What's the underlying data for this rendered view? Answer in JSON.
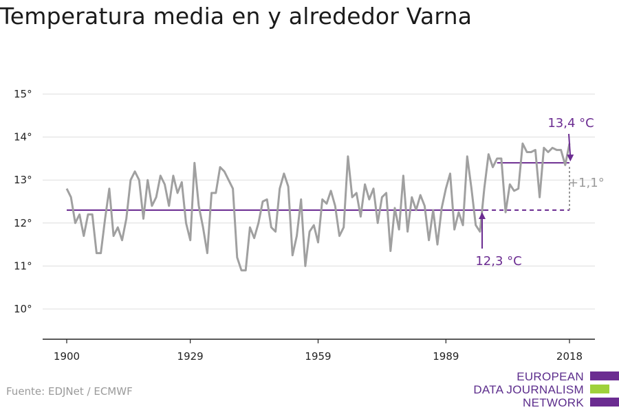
{
  "title": "Temperatura media en y alrededor Varna",
  "source": "Fuente: EDJNet / ECMWF",
  "logo": {
    "line1": "EUROPEAN",
    "line2": "DATA JOURNALISM",
    "line3": "NETWORK",
    "colors": [
      "#6b2c91",
      "#9fd13b",
      "#6b2c91"
    ]
  },
  "colors": {
    "series": "#a0a0a0",
    "accent": "#6b2c91",
    "grid": "#dddddd",
    "axis": "#222222"
  },
  "chart_data": {
    "type": "line",
    "title": "Temperatura media en y alrededor Varna",
    "xlabel": "",
    "ylabel": "",
    "xlim": [
      1900,
      2018
    ],
    "ylim": [
      9.3,
      15.6
    ],
    "grid": true,
    "x_ticks": [
      1900,
      1929,
      1959,
      1989,
      2018
    ],
    "y_ticks": [
      10,
      11,
      12,
      13,
      14,
      15
    ],
    "y_tick_labels": [
      "10°",
      "11°",
      "12°",
      "13°",
      "14°",
      "15°"
    ],
    "series": [
      {
        "x": [
          1900,
          1901,
          1902,
          1903,
          1904,
          1905,
          1906,
          1907,
          1908,
          1909,
          1910,
          1911,
          1912,
          1913,
          1914,
          1915,
          1916,
          1917,
          1918,
          1919,
          1920,
          1921,
          1922,
          1923,
          1924,
          1925,
          1926,
          1927,
          1928,
          1929,
          1930,
          1931,
          1932,
          1933,
          1934,
          1935,
          1936,
          1937,
          1938,
          1939,
          1940,
          1941,
          1942,
          1943,
          1944,
          1945,
          1946,
          1947,
          1948,
          1949,
          1950,
          1951,
          1952,
          1953,
          1954,
          1955,
          1956,
          1957,
          1958,
          1959,
          1960,
          1961,
          1962,
          1963,
          1964,
          1965,
          1966,
          1967,
          1968,
          1969,
          1970,
          1971,
          1972,
          1973,
          1974,
          1975,
          1976,
          1977,
          1978,
          1979,
          1980,
          1981,
          1982,
          1983,
          1984,
          1985,
          1986,
          1987,
          1988,
          1989,
          1990,
          1991,
          1992,
          1993,
          1994,
          1995,
          1996,
          1997,
          1998,
          1999,
          2000,
          2001,
          2002,
          2003,
          2004,
          2005,
          2006,
          2007,
          2008,
          2009,
          2010,
          2011,
          2012,
          2013,
          2014,
          2015,
          2016,
          2017,
          2018
        ],
        "values": [
          12.8,
          12.6,
          12.0,
          12.2,
          11.7,
          12.2,
          12.2,
          11.3,
          11.3,
          12.1,
          12.8,
          11.7,
          11.9,
          11.6,
          12.1,
          13.0,
          13.2,
          13.0,
          12.1,
          13.0,
          12.4,
          12.6,
          13.1,
          12.9,
          12.4,
          13.1,
          12.7,
          12.95,
          12.0,
          11.6,
          13.4,
          12.4,
          11.9,
          11.3,
          12.7,
          12.7,
          13.3,
          13.2,
          13.0,
          12.8,
          11.2,
          10.9,
          10.9,
          11.9,
          11.65,
          12.0,
          12.5,
          12.55,
          11.9,
          11.8,
          12.8,
          13.15,
          12.85,
          11.25,
          11.7,
          12.55,
          11.0,
          11.8,
          11.95,
          11.55,
          12.55,
          12.45,
          12.75,
          12.4,
          11.7,
          11.9,
          13.55,
          12.6,
          12.7,
          12.15,
          12.9,
          12.55,
          12.8,
          12.0,
          12.6,
          12.7,
          11.35,
          12.35,
          11.85,
          13.1,
          11.8,
          12.6,
          12.3,
          12.65,
          12.4,
          11.6,
          12.3,
          11.5,
          12.35,
          12.8,
          13.15,
          11.85,
          12.25,
          11.95,
          13.55,
          12.8,
          11.95,
          11.8,
          12.8,
          13.6,
          13.3,
          13.5,
          13.5,
          12.25,
          12.9,
          12.75,
          12.8,
          13.85,
          13.65,
          13.65,
          13.7,
          12.6,
          13.75,
          13.65,
          13.75,
          13.7,
          13.7,
          13.35,
          13.85
        ]
      }
    ],
    "annotations": {
      "baseline_value": 12.3,
      "baseline_label": "12,3 °C",
      "recent_value": 13.4,
      "recent_label": "13,4 °C",
      "recent_from": 2001,
      "difference_label": "+1,1°"
    }
  }
}
